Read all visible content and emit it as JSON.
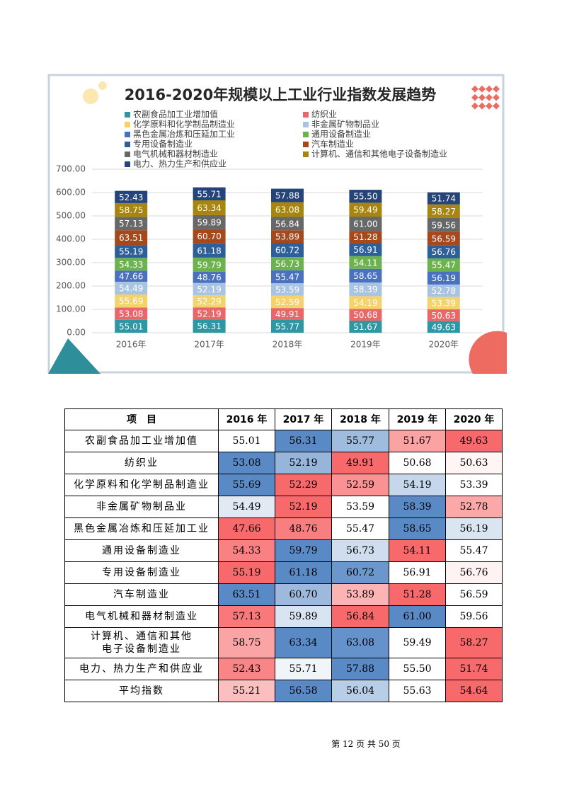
{
  "chart_data": {
    "type": "bar",
    "stacked": true,
    "title": "2016-2020年规模以上工业行业指数发展趋势",
    "categories": [
      "2016年",
      "2017年",
      "2018年",
      "2019年",
      "2020年"
    ],
    "ylim": [
      0,
      700
    ],
    "yticks": [
      {
        "value": 0,
        "label": "0.00"
      },
      {
        "value": 100,
        "label": "100.00"
      },
      {
        "value": 200,
        "label": "200.00"
      },
      {
        "value": 300,
        "label": "300.00"
      },
      {
        "value": 400,
        "label": "400.00"
      },
      {
        "value": 500,
        "label": "500.00"
      },
      {
        "value": 600,
        "label": "600.00"
      },
      {
        "value": 700,
        "label": "700.00"
      }
    ],
    "grid": true,
    "series": [
      {
        "name": "农副食品加工业增加值",
        "color": "#2e97a4",
        "values": [
          55.01,
          56.31,
          55.77,
          51.67,
          49.63
        ],
        "value_labels": [
          "55.01",
          "56.31",
          "55.77",
          "51.67",
          "49.63"
        ]
      },
      {
        "name": "纺织业",
        "color": "#e8686a",
        "values": [
          53.08,
          52.19,
          49.91,
          50.68,
          50.63
        ],
        "value_labels": [
          "53.08",
          "52.19",
          "49.91",
          "50.68",
          "50.63"
        ]
      },
      {
        "name": "化学原料和化学制品制造业",
        "color": "#f5d36b",
        "values": [
          55.69,
          52.29,
          52.59,
          54.19,
          53.39
        ],
        "value_labels": [
          "55.69",
          "52.29",
          "52.59",
          "54.19",
          "53.39"
        ]
      },
      {
        "name": "非金属矿物制品业",
        "color": "#a9c4e2",
        "values": [
          54.49,
          52.19,
          53.59,
          58.39,
          52.78
        ],
        "value_labels": [
          "54.49",
          "52.19",
          "53.59",
          "58.39",
          "52.78"
        ]
      },
      {
        "name": "黑色金属冶炼和压延加工业",
        "color": "#4a70c0",
        "values": [
          47.66,
          48.76,
          55.47,
          58.65,
          56.19
        ],
        "value_labels": [
          "47.66",
          "48.76",
          "55.47",
          "58.65",
          "56.19"
        ]
      },
      {
        "name": "通用设备制造业",
        "color": "#6cb34f",
        "values": [
          54.33,
          59.79,
          56.73,
          54.11,
          55.47
        ],
        "value_labels": [
          "54.33",
          "59.79",
          "56.73",
          "54.11",
          "55.47"
        ]
      },
      {
        "name": "专用设备制造业",
        "color": "#2d5f9a",
        "values": [
          55.19,
          61.18,
          60.72,
          56.91,
          56.76
        ],
        "value_labels": [
          "55.19",
          "61.18",
          "60.72",
          "56.91",
          "56.76"
        ]
      },
      {
        "name": "汽车制造业",
        "color": "#a5481c",
        "values": [
          63.51,
          60.7,
          53.89,
          51.28,
          56.59
        ],
        "value_labels": [
          "63.51",
          "60.70",
          "53.89",
          "51.28",
          "56.59"
        ]
      },
      {
        "name": "电气机械和器材制造业",
        "color": "#686868",
        "values": [
          57.13,
          59.89,
          56.84,
          61.0,
          59.56
        ],
        "value_labels": [
          "57.13",
          "59.89",
          "56.84",
          "61.00",
          "59.56"
        ]
      },
      {
        "name": "计算机、通信和其他电子设备制造业",
        "color": "#a8850e",
        "values": [
          58.75,
          63.34,
          63.08,
          59.49,
          58.27
        ],
        "value_labels": [
          "58.75",
          "63.34",
          "63.08",
          "59.49",
          "58.27"
        ]
      },
      {
        "name": "电力、热力生产和供应业",
        "color": "#254479",
        "values": [
          52.43,
          55.71,
          57.88,
          55.5,
          51.74
        ],
        "value_labels": [
          "52.43",
          "55.71",
          "57.88",
          "55.50",
          "51.74"
        ]
      }
    ]
  },
  "table": {
    "header": [
      "项　目",
      "2016 年",
      "2017 年",
      "2018 年",
      "2019 年",
      "2020 年"
    ],
    "rows": [
      [
        "农副食品加工业增加值",
        "55.01",
        "56.31",
        "55.77",
        "51.67",
        "49.63"
      ],
      [
        "纺织业",
        "53.08",
        "52.19",
        "49.91",
        "50.68",
        "50.63"
      ],
      [
        "化学原料和化学制品制造业",
        "55.69",
        "52.29",
        "52.59",
        "54.19",
        "53.39"
      ],
      [
        "非金属矿物制品业",
        "54.49",
        "52.19",
        "53.59",
        "58.39",
        "52.78"
      ],
      [
        "黑色金属冶炼和压延加工业",
        "47.66",
        "48.76",
        "55.47",
        "58.65",
        "56.19"
      ],
      [
        "通用设备制造业",
        "54.33",
        "59.79",
        "56.73",
        "54.11",
        "55.47"
      ],
      [
        "专用设备制造业",
        "55.19",
        "61.18",
        "60.72",
        "56.91",
        "56.76"
      ],
      [
        "汽车制造业",
        "63.51",
        "60.70",
        "53.89",
        "51.28",
        "56.59"
      ],
      [
        "电气机械和器材制造业",
        "57.13",
        "59.89",
        "56.84",
        "61.00",
        "59.56"
      ],
      [
        "计算机、通信和其他\n电子设备制造业",
        "58.75",
        "63.34",
        "63.08",
        "59.49",
        "58.27"
      ],
      [
        "电力、热力生产和供应业",
        "52.43",
        "55.71",
        "57.88",
        "55.50",
        "51.74"
      ],
      [
        "平均指数",
        "55.21",
        "56.58",
        "56.04",
        "55.63",
        "54.64"
      ]
    ]
  },
  "footer": "第 12 页 共 50 页"
}
